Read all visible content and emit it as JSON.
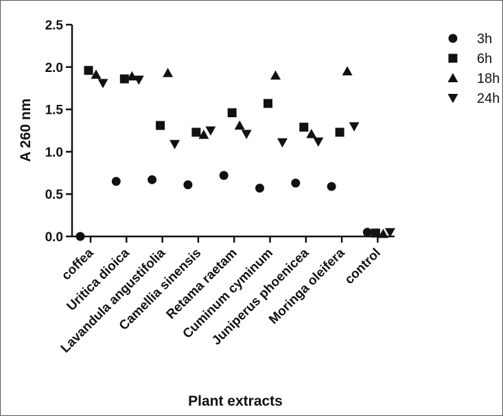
{
  "chart_data": {
    "type": "scatter",
    "title": "",
    "xlabel": "Plant extracts",
    "ylabel": "A 260 nm",
    "ylim": [
      0,
      2.5
    ],
    "yticks": [
      "0.0",
      "0.5",
      "1.0",
      "1.5",
      "2.0",
      "2.5"
    ],
    "categories": [
      "coffea",
      "Uritica dioica",
      "Lavandula angustifolia",
      "Camellia sinensis",
      "Retama raetam",
      "Cuminum cyminum",
      "Juniperus phoenicea",
      "Moringa oleifera",
      "control"
    ],
    "series": [
      {
        "name": "3h",
        "marker": "circle",
        "values": [
          0.0,
          0.65,
          0.67,
          0.61,
          0.72,
          0.57,
          0.63,
          0.59,
          0.05
        ]
      },
      {
        "name": "6h",
        "marker": "square",
        "values": [
          1.96,
          1.86,
          1.31,
          1.23,
          1.46,
          1.57,
          1.29,
          1.23,
          0.04
        ]
      },
      {
        "name": "18h",
        "marker": "triangle-up",
        "values": [
          1.91,
          1.89,
          1.93,
          1.2,
          1.31,
          1.9,
          1.21,
          1.95,
          0.03
        ]
      },
      {
        "name": "24h",
        "marker": "triangle-down",
        "values": [
          1.81,
          1.85,
          1.09,
          1.25,
          1.21,
          1.11,
          1.12,
          1.3,
          0.05
        ]
      }
    ],
    "legend": "top-right",
    "grid": false,
    "color": "#111111"
  }
}
